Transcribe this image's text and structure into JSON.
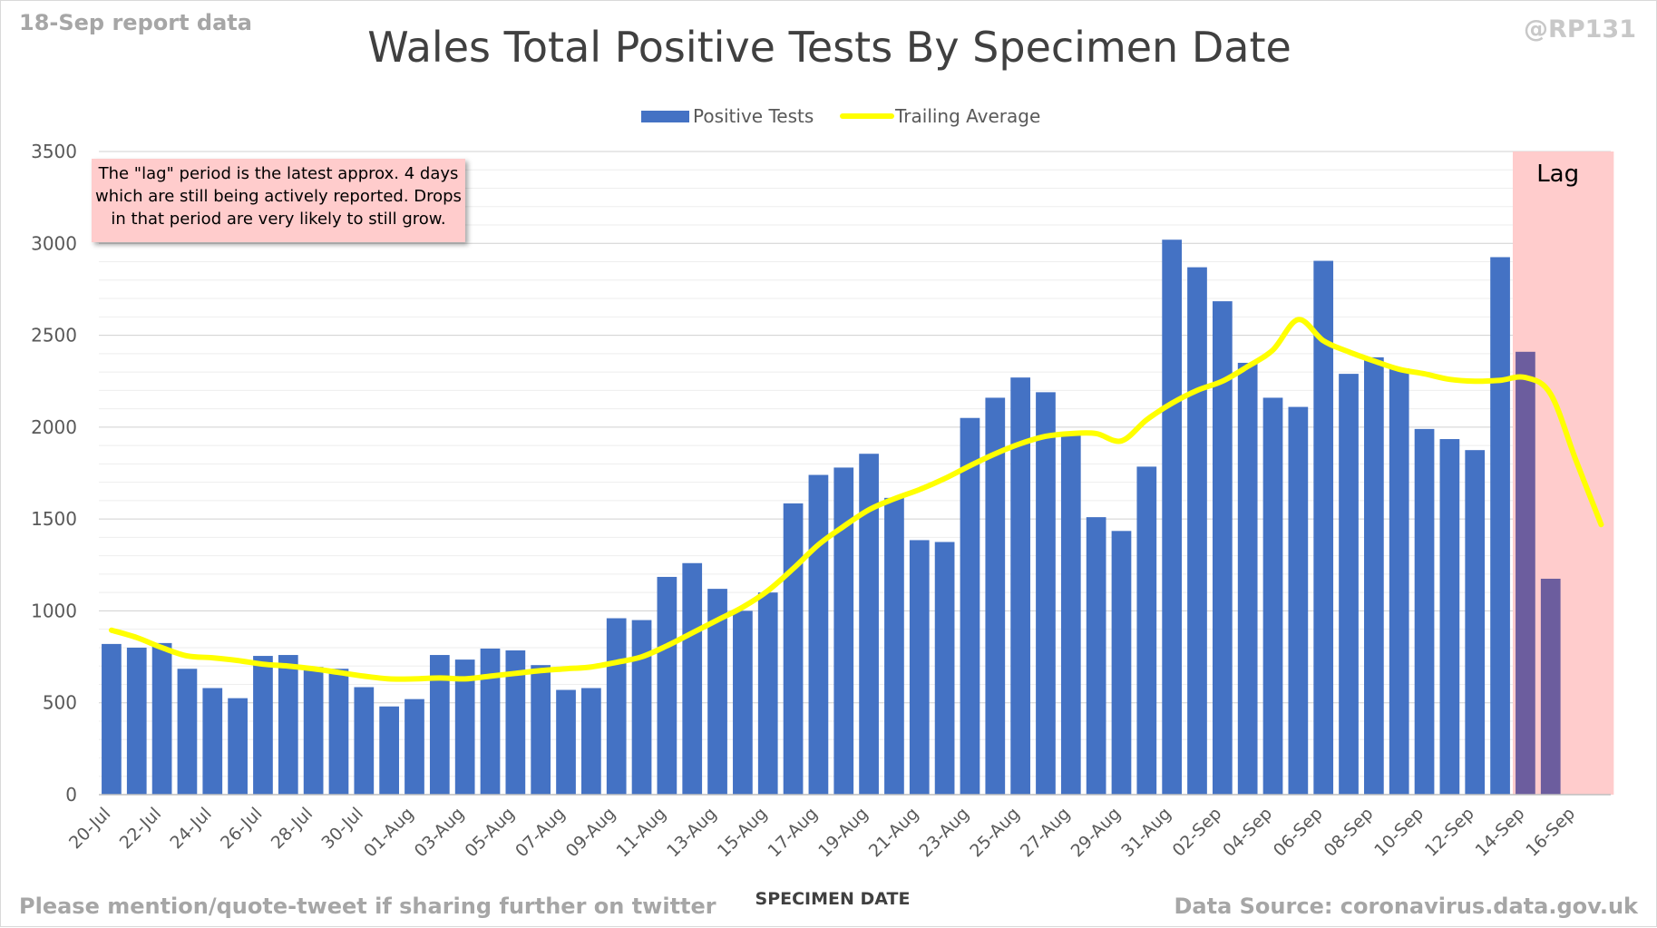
{
  "header": {
    "report_date": "18-Sep report data",
    "handle": "@RP131"
  },
  "footer": {
    "mention": "Please mention/quote-tweet if sharing further on twitter",
    "source": "Data Source: coronavirus.data.gov.uk"
  },
  "annotation": {
    "lines": [
      "The \"lag\" period is the latest approx. 4 days",
      "which are still being actively reported.  Drops",
      "in that period are very likely to still grow."
    ]
  },
  "colors": {
    "bar": "#4472c4",
    "bar_lag": "#6c5d9e",
    "line": "#ffff00",
    "lag_region": "#ffcccc",
    "grid": "#d9d9d9",
    "text": "#595959"
  },
  "chart_data": {
    "type": "bar",
    "title": "Wales Total Positive Tests By Specimen Date",
    "xlabel": "SPECIMEN DATE",
    "ylabel": "",
    "ylim": [
      0,
      3500
    ],
    "yticks": [
      0,
      500,
      1000,
      1500,
      2000,
      2500,
      3000,
      3500
    ],
    "grid": true,
    "legend_position": "top-center",
    "categories": [
      "20-Jul",
      "21-Jul",
      "22-Jul",
      "23-Jul",
      "24-Jul",
      "25-Jul",
      "26-Jul",
      "27-Jul",
      "28-Jul",
      "29-Jul",
      "30-Jul",
      "31-Jul",
      "01-Aug",
      "02-Aug",
      "03-Aug",
      "04-Aug",
      "05-Aug",
      "06-Aug",
      "07-Aug",
      "08-Aug",
      "09-Aug",
      "10-Aug",
      "11-Aug",
      "12-Aug",
      "13-Aug",
      "14-Aug",
      "15-Aug",
      "16-Aug",
      "17-Aug",
      "18-Aug",
      "19-Aug",
      "20-Aug",
      "21-Aug",
      "22-Aug",
      "23-Aug",
      "24-Aug",
      "25-Aug",
      "26-Aug",
      "27-Aug",
      "28-Aug",
      "29-Aug",
      "30-Aug",
      "31-Aug",
      "01-Sep",
      "02-Sep",
      "03-Sep",
      "04-Sep",
      "05-Sep",
      "06-Sep",
      "07-Sep",
      "08-Sep",
      "09-Sep",
      "10-Sep",
      "11-Sep",
      "12-Sep",
      "13-Sep",
      "14-Sep",
      "15-Sep",
      "16-Sep",
      "17-Sep"
    ],
    "tick_labels": [
      "20-Jul",
      "22-Jul",
      "24-Jul",
      "26-Jul",
      "28-Jul",
      "30-Jul",
      "01-Aug",
      "03-Aug",
      "05-Aug",
      "07-Aug",
      "09-Aug",
      "11-Aug",
      "13-Aug",
      "15-Aug",
      "17-Aug",
      "19-Aug",
      "21-Aug",
      "23-Aug",
      "25-Aug",
      "27-Aug",
      "29-Aug",
      "31-Aug",
      "02-Sep",
      "04-Sep",
      "06-Sep",
      "08-Sep",
      "10-Sep",
      "12-Sep",
      "14-Sep",
      "16-Sep"
    ],
    "lag_label": "Lag",
    "lag_start": "14-Sep",
    "lag_end": "17-Sep",
    "series": [
      {
        "name": "Positive Tests",
        "kind": "bar",
        "values": [
          820,
          800,
          825,
          685,
          580,
          525,
          755,
          760,
          695,
          685,
          585,
          480,
          520,
          760,
          735,
          795,
          785,
          705,
          570,
          580,
          960,
          950,
          1185,
          1260,
          1120,
          1000,
          1100,
          1585,
          1740,
          1780,
          1855,
          1615,
          1385,
          1375,
          2050,
          2160,
          2270,
          2190,
          1960,
          1510,
          1435,
          1785,
          3020,
          2870,
          2685,
          2350,
          2160,
          2110,
          2905,
          2290,
          2380,
          2320,
          1990,
          1935,
          1875,
          2925,
          2410,
          1175,
          null,
          null
        ]
      },
      {
        "name": "Trailing Average",
        "kind": "line",
        "values": [
          895,
          855,
          800,
          755,
          745,
          730,
          710,
          700,
          685,
          665,
          645,
          630,
          630,
          635,
          630,
          645,
          660,
          675,
          685,
          695,
          720,
          750,
          810,
          880,
          950,
          1020,
          1110,
          1230,
          1360,
          1460,
          1550,
          1610,
          1660,
          1720,
          1790,
          1855,
          1910,
          1950,
          1965,
          1965,
          1925,
          2040,
          2130,
          2200,
          2250,
          2330,
          2420,
          2585,
          2470,
          2410,
          2360,
          2315,
          2290,
          2260,
          2250,
          2255,
          2270,
          2180,
          1820,
          1470
        ]
      }
    ]
  }
}
